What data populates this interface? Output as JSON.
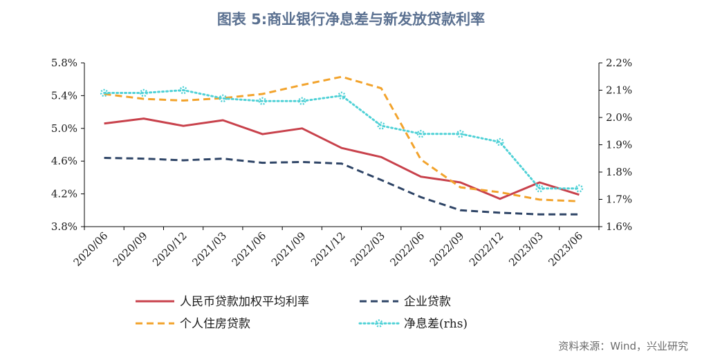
{
  "chart_data": {
    "type": "line",
    "title": "图表 5:商业银行净息差与新发放贷款利率",
    "categories": [
      "2020/06",
      "2020/09",
      "2020/12",
      "2021/03",
      "2021/06",
      "2021/09",
      "2021/12",
      "2022/03",
      "2022/06",
      "2022/09",
      "2022/12",
      "2023/03",
      "2023/06"
    ],
    "y_left": {
      "min": 3.8,
      "max": 5.8,
      "ticks": [
        "5.8%",
        "5.4%",
        "5.0%",
        "4.6%",
        "4.2%",
        "3.8%"
      ],
      "tick_values": [
        5.8,
        5.4,
        5.0,
        4.6,
        4.2,
        3.8
      ]
    },
    "y_right": {
      "min": 1.6,
      "max": 2.2,
      "ticks": [
        "2.2%",
        "2.1%",
        "2.0%",
        "1.9%",
        "1.8%",
        "1.7%",
        "1.6%"
      ],
      "tick_values": [
        2.2,
        2.1,
        2.0,
        1.9,
        1.8,
        1.7,
        1.6
      ]
    },
    "series": [
      {
        "name": "人民币贷款加权平均利率",
        "axis": "left",
        "color": "#c8414b",
        "style": "solid",
        "values": [
          5.06,
          5.12,
          5.03,
          5.1,
          4.93,
          5.0,
          4.76,
          4.65,
          4.41,
          4.34,
          4.14,
          4.34,
          4.19
        ]
      },
      {
        "name": "企业贷款",
        "axis": "left",
        "color": "#2e4466",
        "style": "dash",
        "values": [
          4.64,
          4.63,
          4.61,
          4.63,
          4.58,
          4.59,
          4.57,
          4.37,
          4.16,
          4.0,
          3.97,
          3.95,
          3.95
        ]
      },
      {
        "name": "个人住房贷款",
        "axis": "left",
        "color": "#f2a32c",
        "style": "dash",
        "values": [
          5.42,
          5.36,
          5.34,
          5.37,
          5.42,
          5.53,
          5.63,
          5.49,
          4.62,
          4.28,
          4.22,
          4.13,
          4.11
        ]
      },
      {
        "name": "净息差(rhs)",
        "axis": "right",
        "color": "#4fd1d6",
        "style": "dot-marker",
        "values": [
          2.09,
          2.09,
          2.1,
          2.07,
          2.06,
          2.06,
          2.08,
          1.97,
          1.94,
          1.94,
          1.91,
          1.74,
          1.74
        ]
      }
    ],
    "legend_position": "bottom",
    "grid": false
  },
  "source": "资料来源：Wind，兴业研究"
}
